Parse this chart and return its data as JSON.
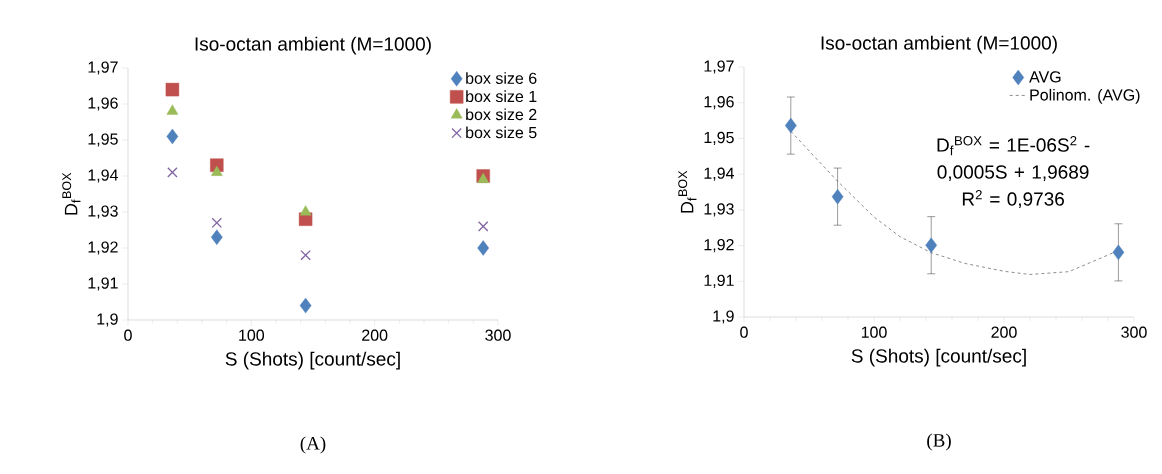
{
  "chart_data": [
    {
      "type": "scatter",
      "title": "Iso-octan ambient (M=1000)",
      "xlabel": "S (Shots) [count/sec]",
      "ylabel": "D$_{f}$$^{BOX}$",
      "x": [
        36,
        72,
        144,
        288
      ],
      "series": [
        {
          "name": "box size 6",
          "color": "#4f81bd",
          "marker": "diamond",
          "values": [
            1.951,
            1.923,
            1.904,
            1.92
          ]
        },
        {
          "name": "box size 1",
          "color": "#c0504d",
          "marker": "square",
          "values": [
            1.964,
            1.943,
            1.928,
            1.94
          ]
        },
        {
          "name": "box size 2",
          "color": "#9bbb59",
          "marker": "triangle",
          "values": [
            1.958,
            1.941,
            1.93,
            1.939
          ]
        },
        {
          "name": "box size 5",
          "color": "#8064a2",
          "marker": "cross",
          "values": [
            1.941,
            1.927,
            1.918,
            1.926
          ]
        }
      ],
      "xlim": [
        0,
        300
      ],
      "xticks": [
        0,
        100,
        200,
        300
      ],
      "ylim": [
        1.9,
        1.97
      ],
      "yticks": [
        {
          "value": 1.9,
          "label": "1,9"
        },
        {
          "value": 1.91,
          "label": "1,91"
        },
        {
          "value": 1.92,
          "label": "1,92"
        },
        {
          "value": 1.93,
          "label": "1,93"
        },
        {
          "value": 1.94,
          "label": "1,94"
        },
        {
          "value": 1.95,
          "label": "1,95"
        },
        {
          "value": 1.96,
          "label": "1,96"
        },
        {
          "value": 1.97,
          "label": "1,97"
        }
      ],
      "legend": "top right",
      "annotations": [
        "(A)"
      ]
    },
    {
      "type": "scatter",
      "title": "Iso-octan ambient (M=1000)",
      "xlabel": "S (Shots) [count/sec]",
      "ylabel": "D$_{f}$$^{BOX}$",
      "x": [
        36,
        72,
        144,
        288
      ],
      "series": [
        {
          "name": "AVG",
          "color": "#4f81bd",
          "marker": "diamond",
          "values": [
            1.9536,
            1.9337,
            1.9201,
            1.9181
          ],
          "errors": [
            0.008,
            0.008,
            0.008,
            0.008
          ]
        },
        {
          "name": "Polinom. (AVG)",
          "type": "line",
          "color": "#404040",
          "marker": "none",
          "line_style": "dashed",
          "x": [
            36,
            72,
            100,
            120,
            144,
            170,
            200,
            220,
            250,
            288
          ],
          "values": [
            1.952,
            1.938,
            1.928,
            1.9225,
            1.918,
            1.915,
            1.9128,
            1.9119,
            1.9127,
            1.9186
          ]
        }
      ],
      "xlim": [
        0,
        300
      ],
      "xticks": [
        0,
        100,
        200,
        300
      ],
      "ylim": [
        1.9,
        1.97
      ],
      "yticks": [
        {
          "value": 1.9,
          "label": "1,9"
        },
        {
          "value": 1.91,
          "label": "1,91"
        },
        {
          "value": 1.92,
          "label": "1,92"
        },
        {
          "value": 1.93,
          "label": "1,93"
        },
        {
          "value": 1.94,
          "label": "1,94"
        },
        {
          "value": 1.95,
          "label": "1,95"
        },
        {
          "value": 1.96,
          "label": "1,96"
        },
        {
          "value": 1.97,
          "label": "1,97"
        }
      ],
      "legend": "top right",
      "annotations": [
        "D$_{f}$$^{BOX}$ = 1E-06S$^{2}$ - 0,0005S + 1,9689",
        "R$^{2}$ = 0,9736",
        "(B)"
      ]
    }
  ]
}
